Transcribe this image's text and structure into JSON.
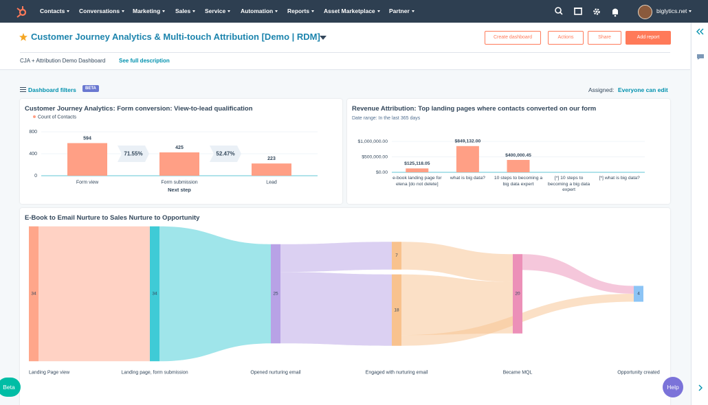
{
  "nav": {
    "items": [
      "Contacts",
      "Conversations",
      "Marketing",
      "Sales",
      "Service",
      "Automation",
      "Reports",
      "Asset Marketplace",
      "Partner"
    ],
    "account": "biglytics.net"
  },
  "header": {
    "title": "Customer Journey Analytics & Multi-touch Attribution [Demo | RDM]",
    "buttons": [
      "Create dashboard",
      "Actions",
      "Share",
      "Add report"
    ],
    "description": "CJA + Attribution Demo Dashboard",
    "link": "See full description"
  },
  "filters": {
    "label": "Dashboard filters",
    "badge": "BETA",
    "assigned_label": "Assigned:",
    "assigned_value": "Everyone can edit"
  },
  "widgets": {
    "beta": "Beta",
    "help": "Help"
  },
  "chart_data": [
    {
      "type": "bar",
      "title": "Customer Journey Analytics: Form conversion: View-to-lead qualification",
      "series": [
        {
          "name": "Count of Contacts",
          "color": "#ff9f85",
          "values": [
            594,
            425,
            223
          ]
        }
      ],
      "categories": [
        "Form view",
        "Form submission",
        "Lead"
      ],
      "conversion_labels": [
        "71.55%",
        "52.47%"
      ],
      "x_label": "Next step",
      "ylim": [
        0,
        800
      ],
      "yticks": [
        0,
        400,
        800
      ],
      "grid": true
    },
    {
      "type": "bar",
      "title": "Revenue Attribution: Top landing pages where contacts converted on our form",
      "subtitle": "Date range: In the last 365 days",
      "categories": [
        "e-book landing page for elena [do not delete]",
        "what is big data?",
        "10 steps to becoming a big data expert",
        "[*] 10 steps to becoming a big data expert",
        "[*] what is big data?"
      ],
      "values": [
        125118.05,
        849132,
        400000.45,
        null,
        null
      ],
      "value_labels": [
        "$125,118.05",
        "$849,132.00",
        "$400,000.45",
        null,
        null
      ],
      "color": "#ff9f85",
      "ylim": [
        0,
        1000000
      ],
      "yticks": [
        {
          "value": 0,
          "label": "$0.00"
        },
        {
          "value": 500000,
          "label": "$500,000.00"
        },
        {
          "value": 1000000,
          "label": "$1,000,000.00"
        }
      ],
      "grid": true
    },
    {
      "type": "sankey",
      "title": "E-Book to Email Nurture to Sales Nurture to Opportunity",
      "stages": [
        {
          "label": "Landing Page view",
          "color": "#ffa68a",
          "values": [
            34
          ]
        },
        {
          "label": "Landing page, form submission",
          "color": "#3fcbd6",
          "values": [
            34
          ]
        },
        {
          "label": "Opened nurturing email",
          "color": "#b8a2e6",
          "values": [
            25
          ]
        },
        {
          "label": "Engaged with nurturing email",
          "color": "#f8c28e",
          "values": [
            7,
            18
          ]
        },
        {
          "label": "Became MQL",
          "color": "#ec90b8",
          "values": [
            20
          ]
        },
        {
          "label": "Opportunity created",
          "color": "#8cc4f5",
          "values": [
            4
          ]
        }
      ]
    }
  ]
}
